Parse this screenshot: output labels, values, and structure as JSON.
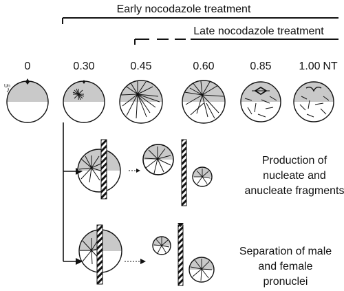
{
  "treatments": {
    "early_label": "Early nocodazole treatment",
    "late_label": "Late nocodazole  treatment"
  },
  "timepoints": [
    "0",
    "0.30",
    "0.45",
    "0.60",
    "0.85",
    "1.00",
    "NT"
  ],
  "side_label": "Un",
  "outcomes": {
    "fragments_lines": [
      "Production of",
      "nucleate and",
      "anucleate fragments"
    ],
    "pronuclei_lines": [
      "Separation of male",
      "and female",
      "pronuclei"
    ]
  },
  "colors": {
    "ink": "#111111",
    "stipple": "#c9c9c9",
    "background": "#ffffff"
  }
}
